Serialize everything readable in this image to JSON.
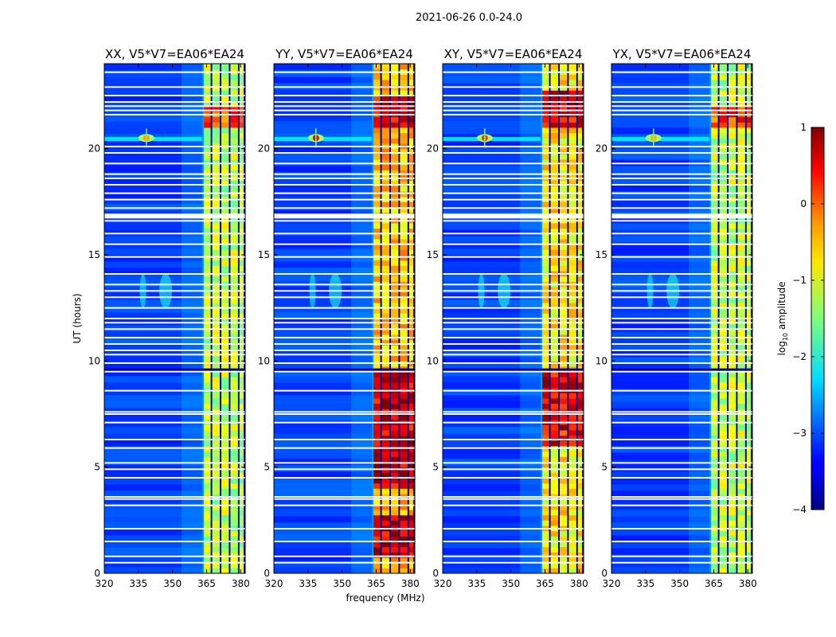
{
  "chart_data": {
    "type": "heatmap",
    "suptitle": "2021-06-26 0.0-24.0",
    "xlabel": "frequency (MHz)",
    "ylabel": "UT (hours)",
    "xlim": [
      320,
      382
    ],
    "ylim": [
      0,
      24
    ],
    "xticks": [
      320,
      335,
      350,
      365,
      380
    ],
    "yticks": [
      0,
      5,
      10,
      15,
      20
    ],
    "colorbar": {
      "label_prefix": "log",
      "label_sub": "10",
      "label_suffix": " amplitude",
      "vmin": -4,
      "vmax": 1,
      "ticks": [
        1,
        0,
        -1,
        -2,
        -3,
        -4
      ],
      "tick_labels": [
        "1",
        "0",
        "−1",
        "−2",
        "−3",
        "−4"
      ],
      "colormap": "jet"
    },
    "panels": [
      {
        "title": "XX, V5*V7=EA06*EA24",
        "band_level": -1.2,
        "high_ranges": [
          [
            21.0,
            21.8
          ]
        ],
        "rfi_level": -0.4
      },
      {
        "title": "YY, V5*V7=EA06*EA24",
        "band_level": -0.6,
        "high_ranges": [
          [
            20.9,
            22.4
          ],
          [
            3.8,
            9.4
          ],
          [
            0.7,
            2.6
          ]
        ],
        "rfi_level": 0.4
      },
      {
        "title": "XY, V5*V7=EA06*EA24",
        "band_level": -0.8,
        "high_ranges": [
          [
            20.9,
            22.6
          ],
          [
            6.0,
            9.3
          ]
        ],
        "rfi_level": 0.1
      },
      {
        "title": "YX, V5*V7=EA06*EA24",
        "band_level": -1.2,
        "high_ranges": [
          [
            21.0,
            21.8
          ]
        ],
        "rfi_level": -0.5
      }
    ],
    "channel_edges_mhz": [
      363.5,
      367.5,
      371.5,
      375.5,
      379.5,
      382.0
    ],
    "flag_hours": [
      0.5,
      0.8,
      1.5,
      2.1,
      3.2,
      3.5,
      3.6,
      4.5,
      4.9,
      5.2,
      5.9,
      6.3,
      7.1,
      7.5,
      7.6,
      8.6,
      9.5,
      9.6,
      9.9,
      10.3,
      10.5,
      10.8,
      11.1,
      11.5,
      11.8,
      12.0,
      12.5,
      13.0,
      13.3,
      13.6,
      14.1,
      14.9,
      15.5,
      16.0,
      16.6,
      16.8,
      16.9,
      17.2,
      17.6,
      17.9,
      18.3,
      18.6,
      18.8,
      19.3,
      19.8,
      20.1,
      21.6,
      21.8,
      22.0,
      22.2,
      22.5,
      22.9,
      23.6
    ]
  }
}
